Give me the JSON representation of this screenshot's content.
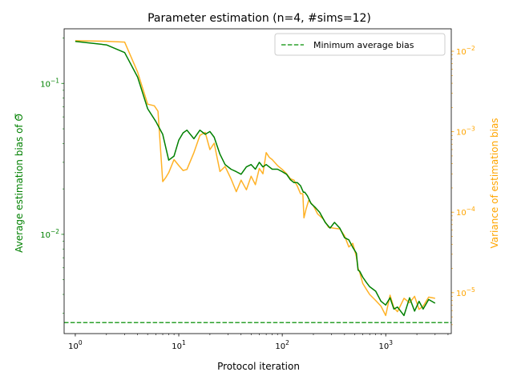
{
  "chart_data": {
    "type": "line",
    "title": "Parameter estimation (n=4, #sims=12)",
    "xlabel": "Protocol iteration",
    "ylabel_left": "Average estimation bias of Θ̅",
    "ylabel_right": "Variance of estimation bias",
    "x_scale": "log",
    "y_left_scale": "log",
    "y_right_scale": "log",
    "xlim": [
      0.78,
      4300
    ],
    "ylim_left": [
      0.0022,
      0.23
    ],
    "ylim_right": [
      3.1e-06,
      0.019
    ],
    "grid": false,
    "legend_position": "top-right",
    "x_ticks": [
      {
        "value": 1,
        "base": "10",
        "exp": "0"
      },
      {
        "value": 10,
        "base": "10",
        "exp": "1"
      },
      {
        "value": 100,
        "base": "10",
        "exp": "2"
      },
      {
        "value": 1000,
        "base": "10",
        "exp": "3"
      }
    ],
    "y_left_ticks": [
      {
        "value": 0.1,
        "base": "10",
        "exp": "−1"
      },
      {
        "value": 0.01,
        "base": "10",
        "exp": "−2"
      }
    ],
    "y_right_ticks": [
      {
        "value": 0.01,
        "base": "10",
        "exp": "−2"
      },
      {
        "value": 0.001,
        "base": "10",
        "exp": "−3"
      },
      {
        "value": 0.0001,
        "base": "10",
        "exp": "−4"
      },
      {
        "value": 1e-05,
        "base": "10",
        "exp": "−5"
      }
    ],
    "series": [
      {
        "axis": "left",
        "color": "#008000",
        "x": [
          1,
          2,
          3,
          4,
          5,
          6,
          7,
          8,
          9,
          10,
          11,
          12,
          14,
          16,
          18,
          20,
          22,
          25,
          28,
          32,
          36,
          40,
          45,
          50,
          55,
          60,
          65,
          70,
          80,
          90,
          100,
          110,
          120,
          130,
          140,
          150,
          160,
          165,
          175,
          190,
          210,
          230,
          260,
          290,
          320,
          360,
          400,
          440,
          480,
          520,
          540,
          560,
          600,
          650,
          700,
          800,
          900,
          1000,
          1100,
          1200,
          1300,
          1500,
          1700,
          1900,
          2100,
          2300,
          2600,
          3000
        ],
        "y": [
          0.19,
          0.18,
          0.16,
          0.11,
          0.068,
          0.056,
          0.046,
          0.031,
          0.033,
          0.042,
          0.047,
          0.049,
          0.043,
          0.049,
          0.046,
          0.048,
          0.044,
          0.034,
          0.029,
          0.027,
          0.026,
          0.025,
          0.028,
          0.029,
          0.027,
          0.03,
          0.028,
          0.029,
          0.027,
          0.027,
          0.026,
          0.025,
          0.023,
          0.022,
          0.022,
          0.021,
          0.019,
          0.019,
          0.018,
          0.016,
          0.015,
          0.014,
          0.012,
          0.011,
          0.012,
          0.011,
          0.0095,
          0.0092,
          0.0082,
          0.0075,
          0.0058,
          0.0057,
          0.0052,
          0.0048,
          0.0045,
          0.0042,
          0.0036,
          0.0034,
          0.0038,
          0.0032,
          0.0033,
          0.0029,
          0.0038,
          0.0031,
          0.0036,
          0.0032,
          0.0037,
          0.0035
        ]
      },
      {
        "axis": "right",
        "color": "#ffa500",
        "x": [
          1,
          2,
          3,
          4,
          5,
          5.8,
          6.3,
          7,
          7.5,
          8,
          9,
          10,
          11,
          12,
          14,
          16,
          18,
          20,
          22,
          25,
          28,
          32,
          36,
          40,
          45,
          50,
          55,
          60,
          65,
          70,
          75,
          80,
          90,
          100,
          110,
          120,
          130,
          140,
          150,
          158,
          162,
          170,
          180,
          200,
          220,
          250,
          280,
          320,
          360,
          400,
          440,
          480,
          520,
          540,
          560,
          600,
          650,
          700,
          800,
          900,
          1000,
          1100,
          1200,
          1300,
          1500,
          1700,
          1900,
          2100,
          2300,
          2600,
          3000
        ],
        "y": [
          0.0135,
          0.0133,
          0.013,
          0.0055,
          0.0022,
          0.0021,
          0.0018,
          0.00024,
          0.00027,
          0.00031,
          0.00045,
          0.00038,
          0.00033,
          0.00034,
          0.00055,
          0.0009,
          0.00098,
          0.0006,
          0.00072,
          0.00032,
          0.00037,
          0.00026,
          0.00018,
          0.00025,
          0.00019,
          0.00028,
          0.00022,
          0.00035,
          0.0003,
          0.00055,
          0.00048,
          0.00045,
          0.00038,
          0.00034,
          0.0003,
          0.00026,
          0.00025,
          0.00021,
          0.00017,
          0.00017,
          8.5e-05,
          0.00011,
          0.00014,
          0.00012,
          9.5e-05,
          8.2e-05,
          6.5e-05,
          6.3e-05,
          6.2e-05,
          5.1e-05,
          3.7e-05,
          4.1e-05,
          2.8e-05,
          2e-05,
          1.8e-05,
          1.3e-05,
          1.1e-05,
          9.5e-06,
          8e-06,
          6.8e-06,
          5.2e-06,
          9.3e-06,
          6.5e-06,
          5.8e-06,
          8.5e-06,
          7.5e-06,
          9e-06,
          6.2e-06,
          6.8e-06,
          8.8e-06,
          8.5e-06
        ]
      }
    ],
    "hlines": [
      {
        "axis": "left",
        "value": 0.0026,
        "color": "#2ca02c",
        "style": "dashed",
        "name": "Minimum average bias"
      }
    ],
    "colors": {
      "left_axis": "#008000",
      "right_axis": "#ffa500",
      "hline": "#2ca02c",
      "axes": "#000000"
    }
  }
}
